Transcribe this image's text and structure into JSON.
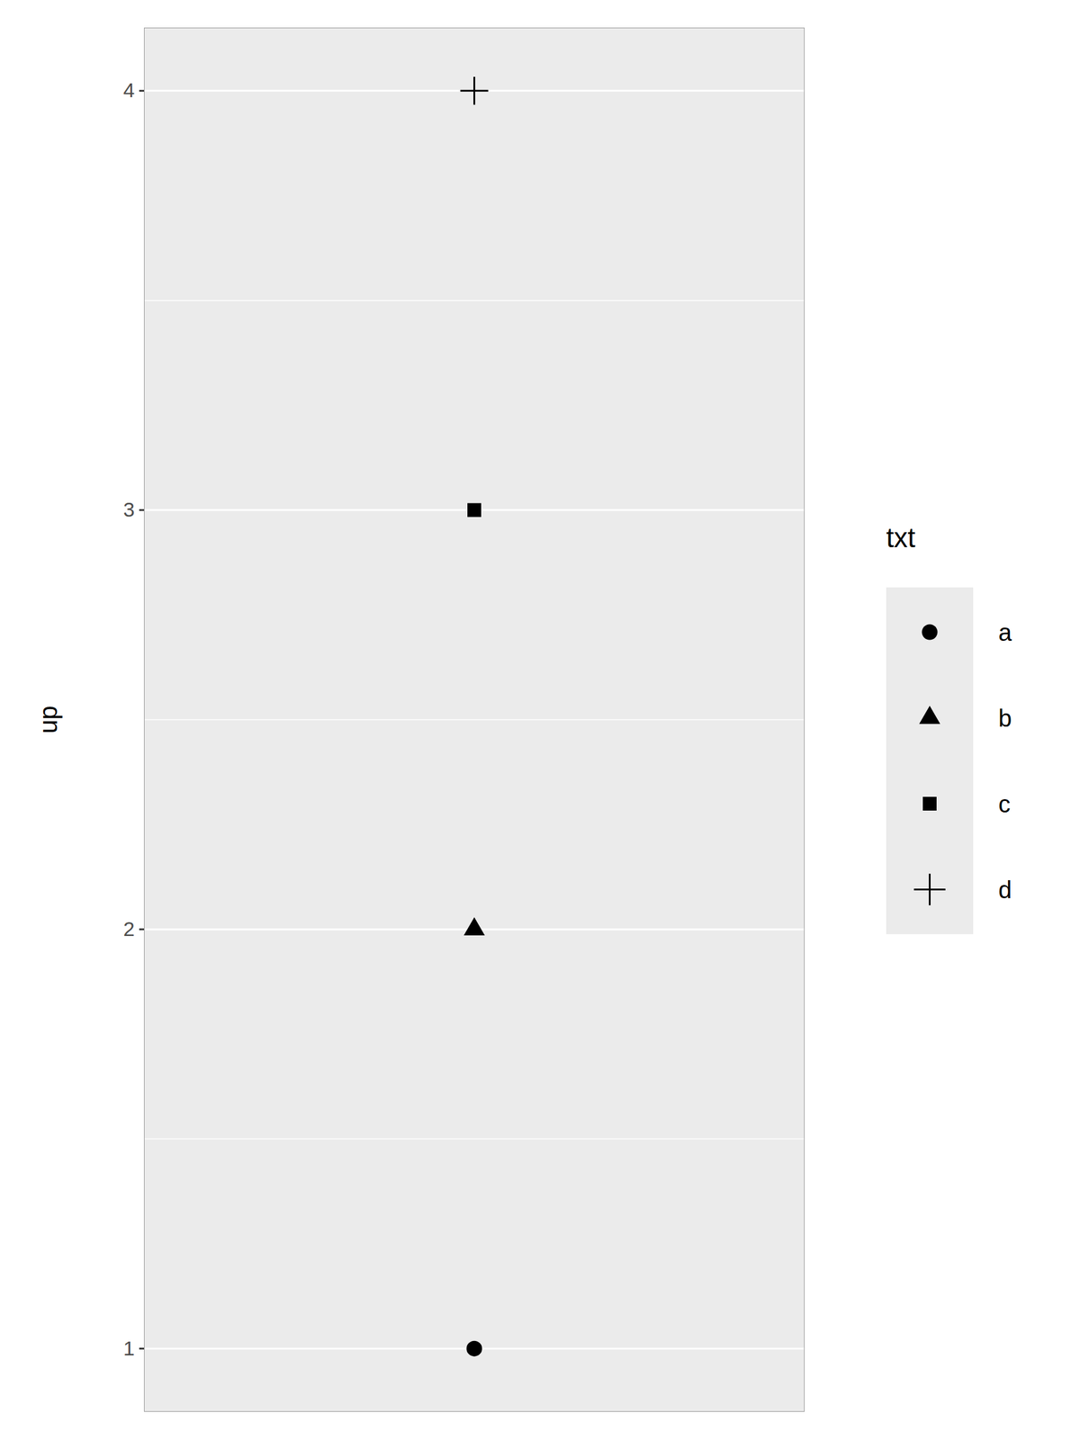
{
  "chart_data": {
    "type": "scatter",
    "y_label": "up",
    "legend_title": "txt",
    "series": [
      {
        "name": "a",
        "marker": "circle",
        "values": [
          1
        ]
      },
      {
        "name": "b",
        "marker": "triangle",
        "values": [
          2
        ]
      },
      {
        "name": "c",
        "marker": "square",
        "values": [
          3
        ]
      },
      {
        "name": "d",
        "marker": "plus",
        "values": [
          4
        ]
      }
    ],
    "color": "#000000",
    "ylim": [
      0.85,
      4.15
    ],
    "yticks": [
      1,
      2,
      3,
      4
    ],
    "grid": true,
    "legend": "right",
    "tick_labels": "y"
  }
}
